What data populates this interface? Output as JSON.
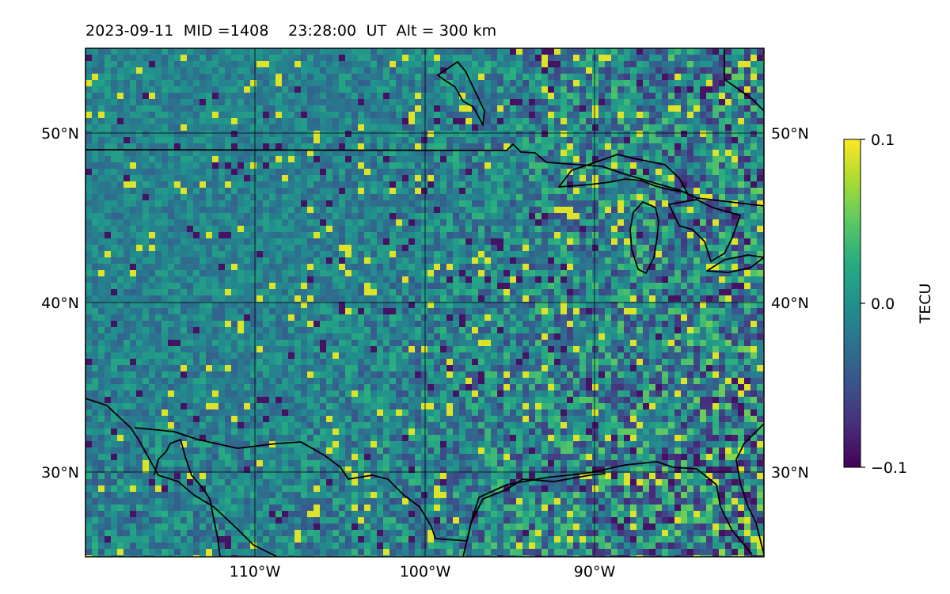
{
  "title": {
    "date": "2023-09-11",
    "mid_label": "MID =1408",
    "time_label": "23:28:00  UT",
    "alt_label": "Alt = 300 km"
  },
  "map": {
    "lon_range": [
      -120,
      -80
    ],
    "lat_range": [
      25,
      55
    ],
    "lon_ticks": [
      "110°W",
      "100°W",
      "90°W"
    ],
    "lat_ticks": [
      "50°N",
      "40°N",
      "30°N"
    ],
    "gridlines": true,
    "colormap": "viridis",
    "coastline_color": "#000000"
  },
  "colorbar": {
    "label": "TECU",
    "vmin": -0.1,
    "vmax": 0.1,
    "tick_labels": [
      "0.1",
      "0.0",
      "−0.1"
    ]
  }
}
